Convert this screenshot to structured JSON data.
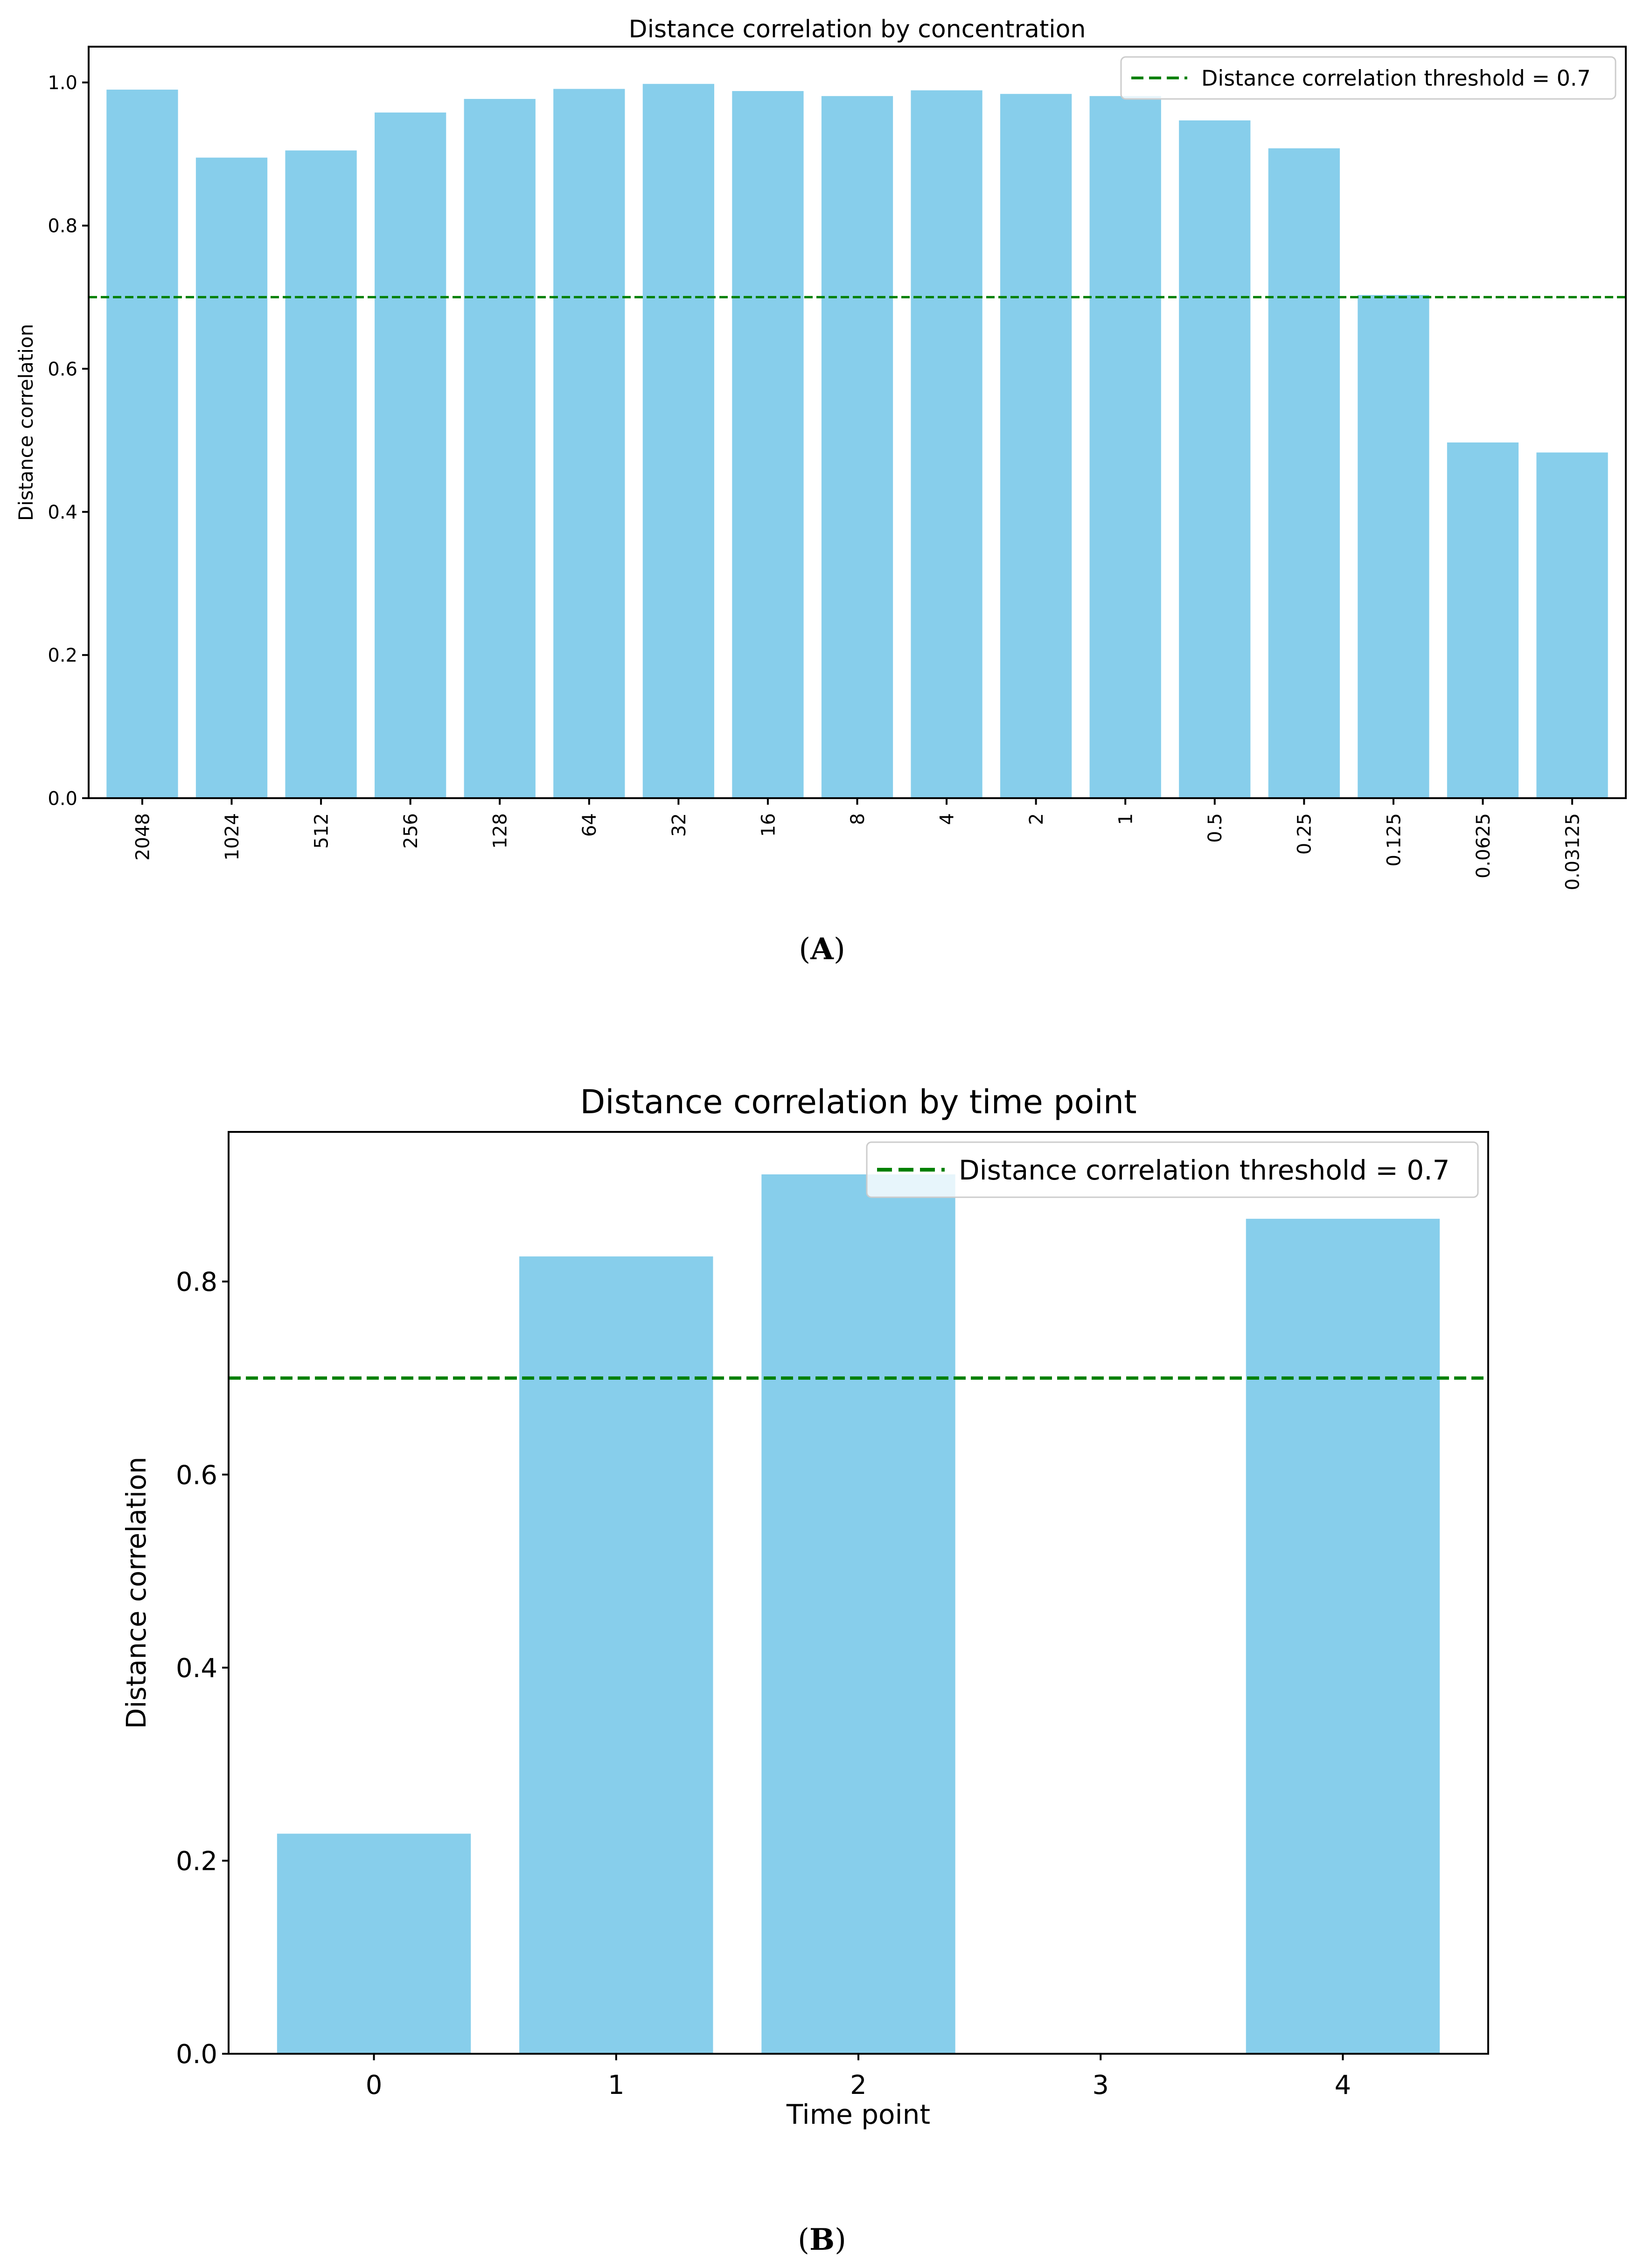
{
  "colors": {
    "bar": "#87CEEB",
    "threshold": "#008000",
    "axis": "#000000",
    "text": "#000000"
  },
  "panels": [
    {
      "label_open": "(",
      "label": "A",
      "label_close": ")",
      "chart_data": {
        "type": "bar",
        "title": "Distance correlation by concentration",
        "xlabel": "",
        "ylabel": "Distance correlation",
        "categories": [
          "2048",
          "1024",
          "512",
          "256",
          "128",
          "64",
          "32",
          "16",
          "8",
          "4",
          "2",
          "1",
          "0.5",
          "0.25",
          "0.125",
          "0.0625",
          "0.03125"
        ],
        "values": [
          0.99,
          0.895,
          0.905,
          0.958,
          0.977,
          0.991,
          0.998,
          0.988,
          0.981,
          0.989,
          0.984,
          0.981,
          0.947,
          0.908,
          0.703,
          0.497,
          0.483
        ],
        "ylim": [
          0,
          1.05
        ],
        "yticks": [
          0.0,
          0.2,
          0.4,
          0.6,
          0.8,
          1.0
        ],
        "ytick_labels": [
          "0.0",
          "0.2",
          "0.4",
          "0.6",
          "0.8",
          "1.0"
        ],
        "xtick_rotation": 90,
        "threshold": 0.7,
        "legend": [
          "Distance correlation threshold = 0.7"
        ],
        "legend_position": "top-right"
      }
    },
    {
      "label_open": "(",
      "label": "B",
      "label_close": ")",
      "chart_data": {
        "type": "bar",
        "title": "Distance correlation by time point",
        "xlabel": "Time point",
        "ylabel": "Distance correlation",
        "categories": [
          "0",
          "1",
          "2",
          "3",
          "4"
        ],
        "values": [
          0.228,
          0.826,
          0.911,
          0.0,
          0.865
        ],
        "ylim": [
          0,
          0.955
        ],
        "yticks": [
          0.0,
          0.2,
          0.4,
          0.6,
          0.8
        ],
        "ytick_labels": [
          "0.0",
          "0.2",
          "0.4",
          "0.6",
          "0.8"
        ],
        "xtick_rotation": 0,
        "threshold": 0.7,
        "legend": [
          "Distance correlation threshold = 0.7"
        ],
        "legend_position": "top-right"
      }
    }
  ]
}
